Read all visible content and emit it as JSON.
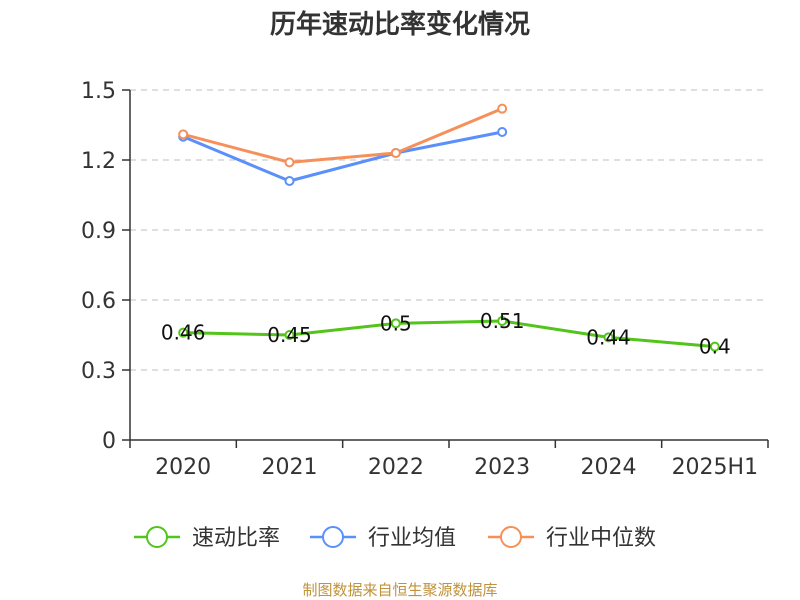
{
  "chart_data": {
    "type": "line",
    "title": "历年速动比率变化情况",
    "categories": [
      "2020",
      "2021",
      "2022",
      "2023",
      "2024",
      "2025H1"
    ],
    "ylim": [
      0,
      1.5
    ],
    "yticks": [
      "0",
      "0.3",
      "0.6",
      "0.9",
      "1.2",
      "1.5"
    ],
    "grid": true,
    "legend_position": "bottom",
    "series": [
      {
        "name": "速动比率",
        "color": "#52c41a",
        "values": [
          0.46,
          0.45,
          0.5,
          0.51,
          0.44,
          0.4
        ],
        "labels": [
          "0.46",
          "0.45",
          "0.5",
          "0.51",
          "0.44",
          "0.4"
        ]
      },
      {
        "name": "行业均值",
        "color": "#5b8ff9",
        "values": [
          1.3,
          1.11,
          1.23,
          1.32,
          null,
          null
        ]
      },
      {
        "name": "行业中位数",
        "color": "#f6905a",
        "values": [
          1.31,
          1.19,
          1.23,
          1.42,
          null,
          null
        ]
      }
    ]
  },
  "source": "制图数据来自恒生聚源数据库"
}
